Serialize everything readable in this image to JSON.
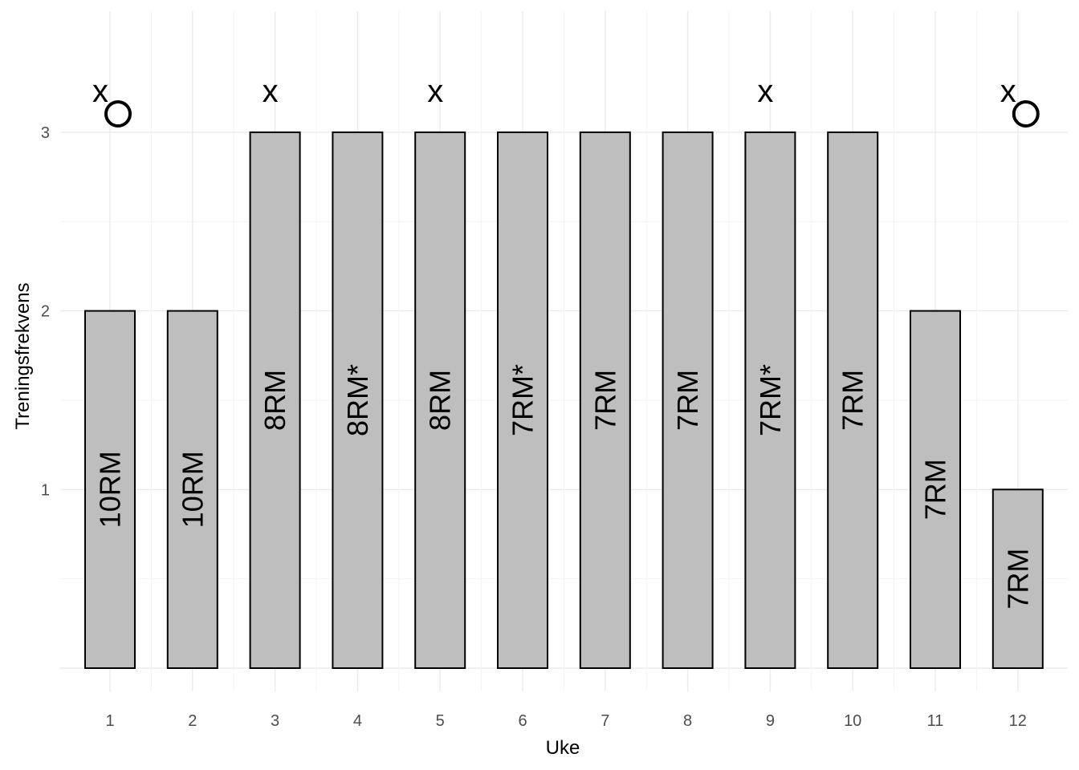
{
  "chart_data": {
    "type": "bar",
    "title": "",
    "xlabel": "Uke",
    "ylabel": "Treningsfrekvens",
    "categories": [
      "1",
      "2",
      "3",
      "4",
      "5",
      "6",
      "7",
      "8",
      "9",
      "10",
      "11",
      "12"
    ],
    "values": [
      2,
      2,
      3,
      3,
      3,
      3,
      3,
      3,
      3,
      3,
      2,
      1
    ],
    "bar_labels": [
      "10RM",
      "10RM",
      "8RM",
      "8RM*",
      "8RM",
      "7RM*",
      "7RM",
      "7RM",
      "7RM*",
      "7RM",
      "7RM",
      "7RM"
    ],
    "yticks": [
      "1",
      "2",
      "3"
    ],
    "ylim": [
      0,
      3.5
    ],
    "grid": true,
    "bar_fill": "#bebebe",
    "bar_stroke": "#000000",
    "annotations": {
      "x_marker_text": "x",
      "x_marker_weeks": [
        "1",
        "3",
        "5",
        "9",
        "12"
      ],
      "circle_marker_weeks": [
        "1",
        "12"
      ]
    }
  }
}
